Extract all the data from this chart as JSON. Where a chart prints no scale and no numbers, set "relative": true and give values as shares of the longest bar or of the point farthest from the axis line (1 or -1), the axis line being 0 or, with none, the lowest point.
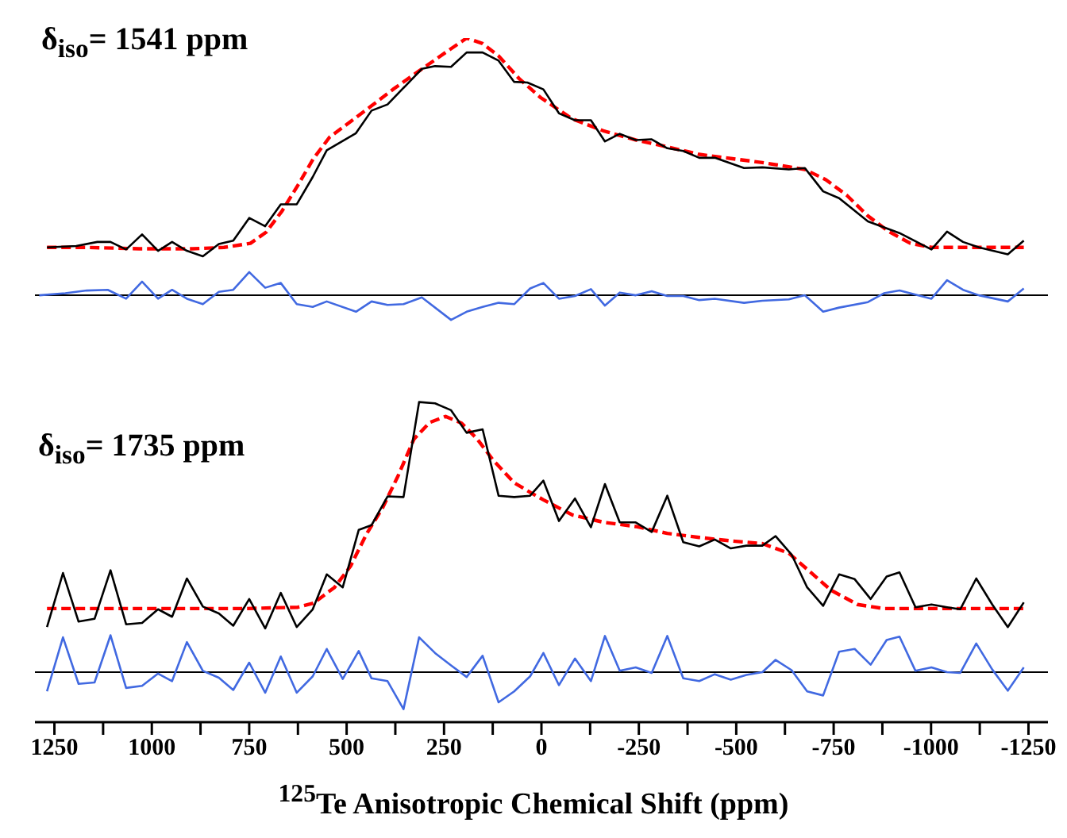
{
  "chart_data": {
    "type": "line",
    "relative": true,
    "marker": "none",
    "xlabel": "$^{125}$Te Anisotropic Chemical Shift (ppm)",
    "annotations": [
      "δ$_{iso}$= 1541 ppm",
      "δ$_{iso}$= 1735 ppm"
    ],
    "xlim": [
      1300,
      -1300
    ],
    "xticks": [
      1250,
      {
        "value": 1125,
        "label": null
      },
      1000,
      {
        "value": 875,
        "label": null
      },
      750,
      {
        "value": 625,
        "label": null
      },
      500,
      {
        "value": 375,
        "label": null
      },
      250,
      {
        "value": 125,
        "label": null
      },
      0,
      {
        "value": -125,
        "label": null
      },
      -250,
      {
        "value": -375,
        "label": null
      },
      -500,
      {
        "value": -625,
        "label": null
      },
      -750,
      {
        "value": -875,
        "label": null
      },
      -1000,
      {
        "value": -1125,
        "label": null
      },
      -1250
    ],
    "ref_lines": [
      {
        "axis": "y",
        "value": 0.624,
        "color": "#000000"
      },
      {
        "axis": "y",
        "value": 0.073,
        "color": "#000000"
      }
    ],
    "series": [
      {
        "color": "#000000",
        "line_style": "solid",
        "x": [
          1269,
          1194,
          1140,
          1106,
          1066,
          1025,
          984,
          948,
          910,
          869,
          828,
          791,
          750,
          709,
          669,
          628,
          587,
          551,
          476,
          436,
          395,
          307,
          273,
          232,
          192,
          151,
          110,
          70,
          36,
          -5,
          -45,
          -86,
          -127,
          -163,
          -201,
          -242,
          -283,
          -323,
          -364,
          -405,
          -445,
          -520,
          -567,
          -635,
          -676,
          -723,
          -764,
          -838,
          -919,
          -1001,
          -1041,
          -1082,
          -1123,
          -1197,
          -1238
        ],
        "values": [
          0.694,
          0.696,
          0.702,
          0.702,
          0.691,
          0.713,
          0.689,
          0.702,
          0.689,
          0.681,
          0.699,
          0.704,
          0.737,
          0.725,
          0.757,
          0.757,
          0.797,
          0.836,
          0.861,
          0.894,
          0.903,
          0.955,
          0.959,
          0.958,
          0.979,
          0.979,
          0.967,
          0.936,
          0.935,
          0.925,
          0.89,
          0.88,
          0.88,
          0.849,
          0.86,
          0.851,
          0.852,
          0.839,
          0.835,
          0.825,
          0.825,
          0.81,
          0.811,
          0.808,
          0.81,
          0.776,
          0.766,
          0.732,
          0.715,
          0.691,
          0.717,
          0.702,
          0.694,
          0.684,
          0.704
        ]
      },
      {
        "color": "#ff0000",
        "line_style": "dashed",
        "x": [
          1269,
          1167,
          1032,
          896,
          815,
          747,
          707,
          666,
          625,
          585,
          544,
          490,
          436,
          381,
          314,
          246,
          192,
          151,
          110,
          56,
          2,
          -79,
          -161,
          -242,
          -323,
          -405,
          -486,
          -567,
          -676,
          -730,
          -784,
          -838,
          -892,
          -947,
          -1001,
          -1082,
          -1238
        ],
        "values": [
          0.694,
          0.694,
          0.692,
          0.692,
          0.694,
          0.7,
          0.716,
          0.747,
          0.785,
          0.824,
          0.855,
          0.878,
          0.901,
          0.925,
          0.952,
          0.979,
          1,
          0.992,
          0.974,
          0.94,
          0.913,
          0.882,
          0.864,
          0.851,
          0.841,
          0.83,
          0.824,
          0.818,
          0.808,
          0.793,
          0.77,
          0.74,
          0.717,
          0.7,
          0.694,
          0.694,
          0.694
        ]
      },
      {
        "color": "#4169e1",
        "line_style": "solid",
        "x": [
          1289,
          1222,
          1167,
          1113,
          1066,
          1025,
          984,
          948,
          910,
          869,
          828,
          791,
          750,
          709,
          669,
          628,
          587,
          551,
          476,
          436,
          395,
          354,
          307,
          232,
          192,
          151,
          110,
          70,
          29,
          -5,
          -45,
          -86,
          -127,
          -163,
          -201,
          -242,
          -283,
          -323,
          -364,
          -405,
          -445,
          -520,
          -567,
          -635,
          -676,
          -723,
          -764,
          -838,
          -879,
          -919,
          -1001,
          -1041,
          -1082,
          -1123,
          -1197,
          -1238
        ],
        "values": [
          0.624,
          0.627,
          0.631,
          0.632,
          0.619,
          0.644,
          0.619,
          0.632,
          0.619,
          0.611,
          0.629,
          0.632,
          0.658,
          0.635,
          0.642,
          0.611,
          0.607,
          0.615,
          0.6,
          0.615,
          0.61,
          0.611,
          0.621,
          0.588,
          0.6,
          0.607,
          0.613,
          0.611,
          0.634,
          0.642,
          0.619,
          0.623,
          0.633,
          0.609,
          0.628,
          0.624,
          0.63,
          0.623,
          0.623,
          0.617,
          0.619,
          0.613,
          0.616,
          0.618,
          0.624,
          0.6,
          0.606,
          0.614,
          0.627,
          0.631,
          0.619,
          0.646,
          0.632,
          0.624,
          0.615,
          0.634
        ]
      },
      {
        "color": "#000000",
        "line_style": "solid",
        "x": [
          1269,
          1228,
          1188,
          1147,
          1106,
          1066,
          1025,
          984,
          948,
          910,
          869,
          828,
          791,
          750,
          709,
          669,
          628,
          587,
          551,
          510,
          469,
          436,
          395,
          354,
          314,
          273,
          232,
          192,
          151,
          110,
          70,
          29,
          -5,
          -45,
          -86,
          -127,
          -163,
          -201,
          -242,
          -283,
          -323,
          -364,
          -405,
          -445,
          -486,
          -526,
          -567,
          -601,
          -642,
          -682,
          -723,
          -764,
          -804,
          -845,
          -886,
          -919,
          -960,
          -1001,
          -1041,
          -1075,
          -1116,
          -1157,
          -1197,
          -1238
        ],
        "values": [
          0.139,
          0.218,
          0.147,
          0.151,
          0.222,
          0.143,
          0.145,
          0.165,
          0.154,
          0.21,
          0.169,
          0.159,
          0.141,
          0.18,
          0.137,
          0.189,
          0.139,
          0.165,
          0.216,
          0.197,
          0.281,
          0.288,
          0.33,
          0.329,
          0.468,
          0.466,
          0.456,
          0.423,
          0.428,
          0.331,
          0.329,
          0.331,
          0.353,
          0.294,
          0.327,
          0.285,
          0.348,
          0.292,
          0.292,
          0.278,
          0.331,
          0.263,
          0.257,
          0.267,
          0.254,
          0.258,
          0.258,
          0.272,
          0.245,
          0.197,
          0.17,
          0.216,
          0.209,
          0.18,
          0.213,
          0.219,
          0.168,
          0.172,
          0.168,
          0.165,
          0.21,
          0.172,
          0.139,
          0.175
        ]
      },
      {
        "color": "#ff0000",
        "line_style": "dashed",
        "x": [
          1269,
          1167,
          1032,
          896,
          761,
          625,
          585,
          531,
          490,
          449,
          408,
          368,
          327,
          287,
          246,
          205,
          165,
          124,
          70,
          29,
          -5,
          -79,
          -161,
          -242,
          -323,
          -405,
          -486,
          -567,
          -635,
          -689,
          -743,
          -811,
          -879,
          -1238
        ],
        "values": [
          0.166,
          0.166,
          0.166,
          0.166,
          0.166,
          0.168,
          0.174,
          0.197,
          0.228,
          0.275,
          0.313,
          0.36,
          0.414,
          0.438,
          0.447,
          0.437,
          0.414,
          0.383,
          0.35,
          0.336,
          0.325,
          0.303,
          0.292,
          0.286,
          0.276,
          0.27,
          0.265,
          0.261,
          0.247,
          0.22,
          0.193,
          0.172,
          0.166,
          0.166
        ]
      },
      {
        "color": "#4169e1",
        "line_style": "solid",
        "x": [
          1269,
          1228,
          1188,
          1147,
          1106,
          1066,
          1025,
          984,
          948,
          910,
          869,
          828,
          791,
          750,
          709,
          669,
          628,
          587,
          551,
          510,
          469,
          436,
          395,
          354,
          314,
          273,
          232,
          192,
          151,
          110,
          70,
          29,
          -5,
          -45,
          -86,
          -127,
          -163,
          -201,
          -242,
          -283,
          -323,
          -364,
          -405,
          -445,
          -486,
          -526,
          -567,
          -601,
          -642,
          -682,
          -723,
          -764,
          -804,
          -845,
          -886,
          -919,
          -960,
          -1001,
          -1041,
          -1075,
          -1116,
          -1157,
          -1197,
          -1238
        ],
        "values": [
          0.045,
          0.124,
          0.056,
          0.058,
          0.127,
          0.05,
          0.053,
          0.071,
          0.06,
          0.117,
          0.075,
          0.065,
          0.047,
          0.087,
          0.043,
          0.096,
          0.043,
          0.067,
          0.107,
          0.063,
          0.104,
          0.064,
          0.06,
          0.019,
          0.124,
          0.101,
          0.083,
          0.066,
          0.097,
          0.029,
          0.045,
          0.067,
          0.101,
          0.054,
          0.093,
          0.06,
          0.126,
          0.075,
          0.08,
          0.072,
          0.126,
          0.064,
          0.06,
          0.07,
          0.062,
          0.069,
          0.073,
          0.091,
          0.076,
          0.045,
          0.039,
          0.103,
          0.107,
          0.084,
          0.12,
          0.125,
          0.075,
          0.08,
          0.073,
          0.072,
          0.115,
          0.077,
          0.046,
          0.08
        ]
      }
    ]
  }
}
